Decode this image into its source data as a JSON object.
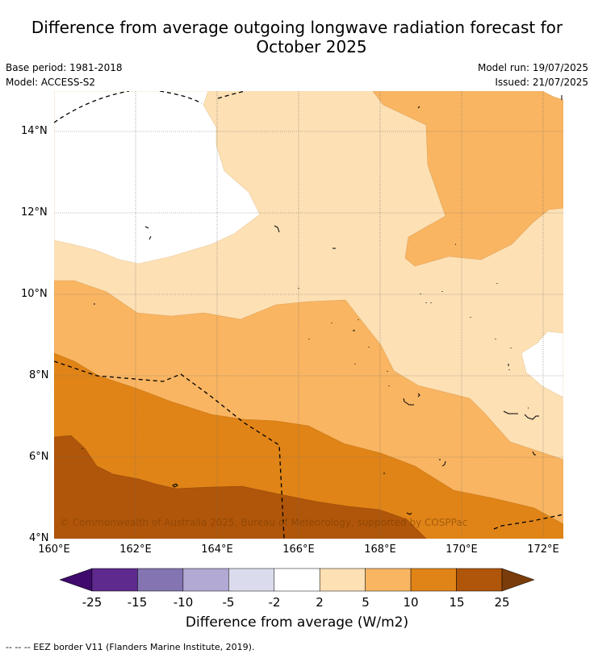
{
  "title": {
    "line1": "Difference from average outgoing longwave radiation forecast for",
    "line2": "October 2025"
  },
  "meta": {
    "base_period": "Base period: 1981-2018",
    "model": "Model: ACCESS-S2",
    "model_run": "Model run: 19/07/2025",
    "issued": "Issued: 21/07/2025"
  },
  "map": {
    "lat_ticks": [
      "14°N",
      "12°N",
      "10°N",
      "8°N",
      "6°N",
      "4°N"
    ],
    "lon_ticks": [
      "160°E",
      "162°E",
      "164°E",
      "166°E",
      "168°E",
      "170°E",
      "172°E"
    ],
    "copyright": "© Commonwealth of Australia 2025, Bureau of Meteorology, supported by COSPPac",
    "category_colors": {
      "2_to_5": "#fde0b4",
      "5_to_10": "#f9b562",
      "10_to_15": "#e08418",
      "15_to_25": "#b0560a",
      "-2_to_2": "#ffffff"
    }
  },
  "colorbar": {
    "ticks": [
      "-25",
      "-15",
      "-10",
      "-5",
      "-2",
      "2",
      "5",
      "10",
      "15",
      "25"
    ],
    "colors": [
      "#3f0a6b",
      "#5e2a8e",
      "#8474b2",
      "#b2a9d4",
      "#dadbec",
      "#ffffff",
      "#fde0b4",
      "#f9b562",
      "#e08418",
      "#b0560a",
      "#7a3c0a"
    ],
    "label": "Difference from average (W/m2)"
  },
  "footnote": "--  --  -- EEZ border V11 (Flanders Marine Institute, 2019)."
}
